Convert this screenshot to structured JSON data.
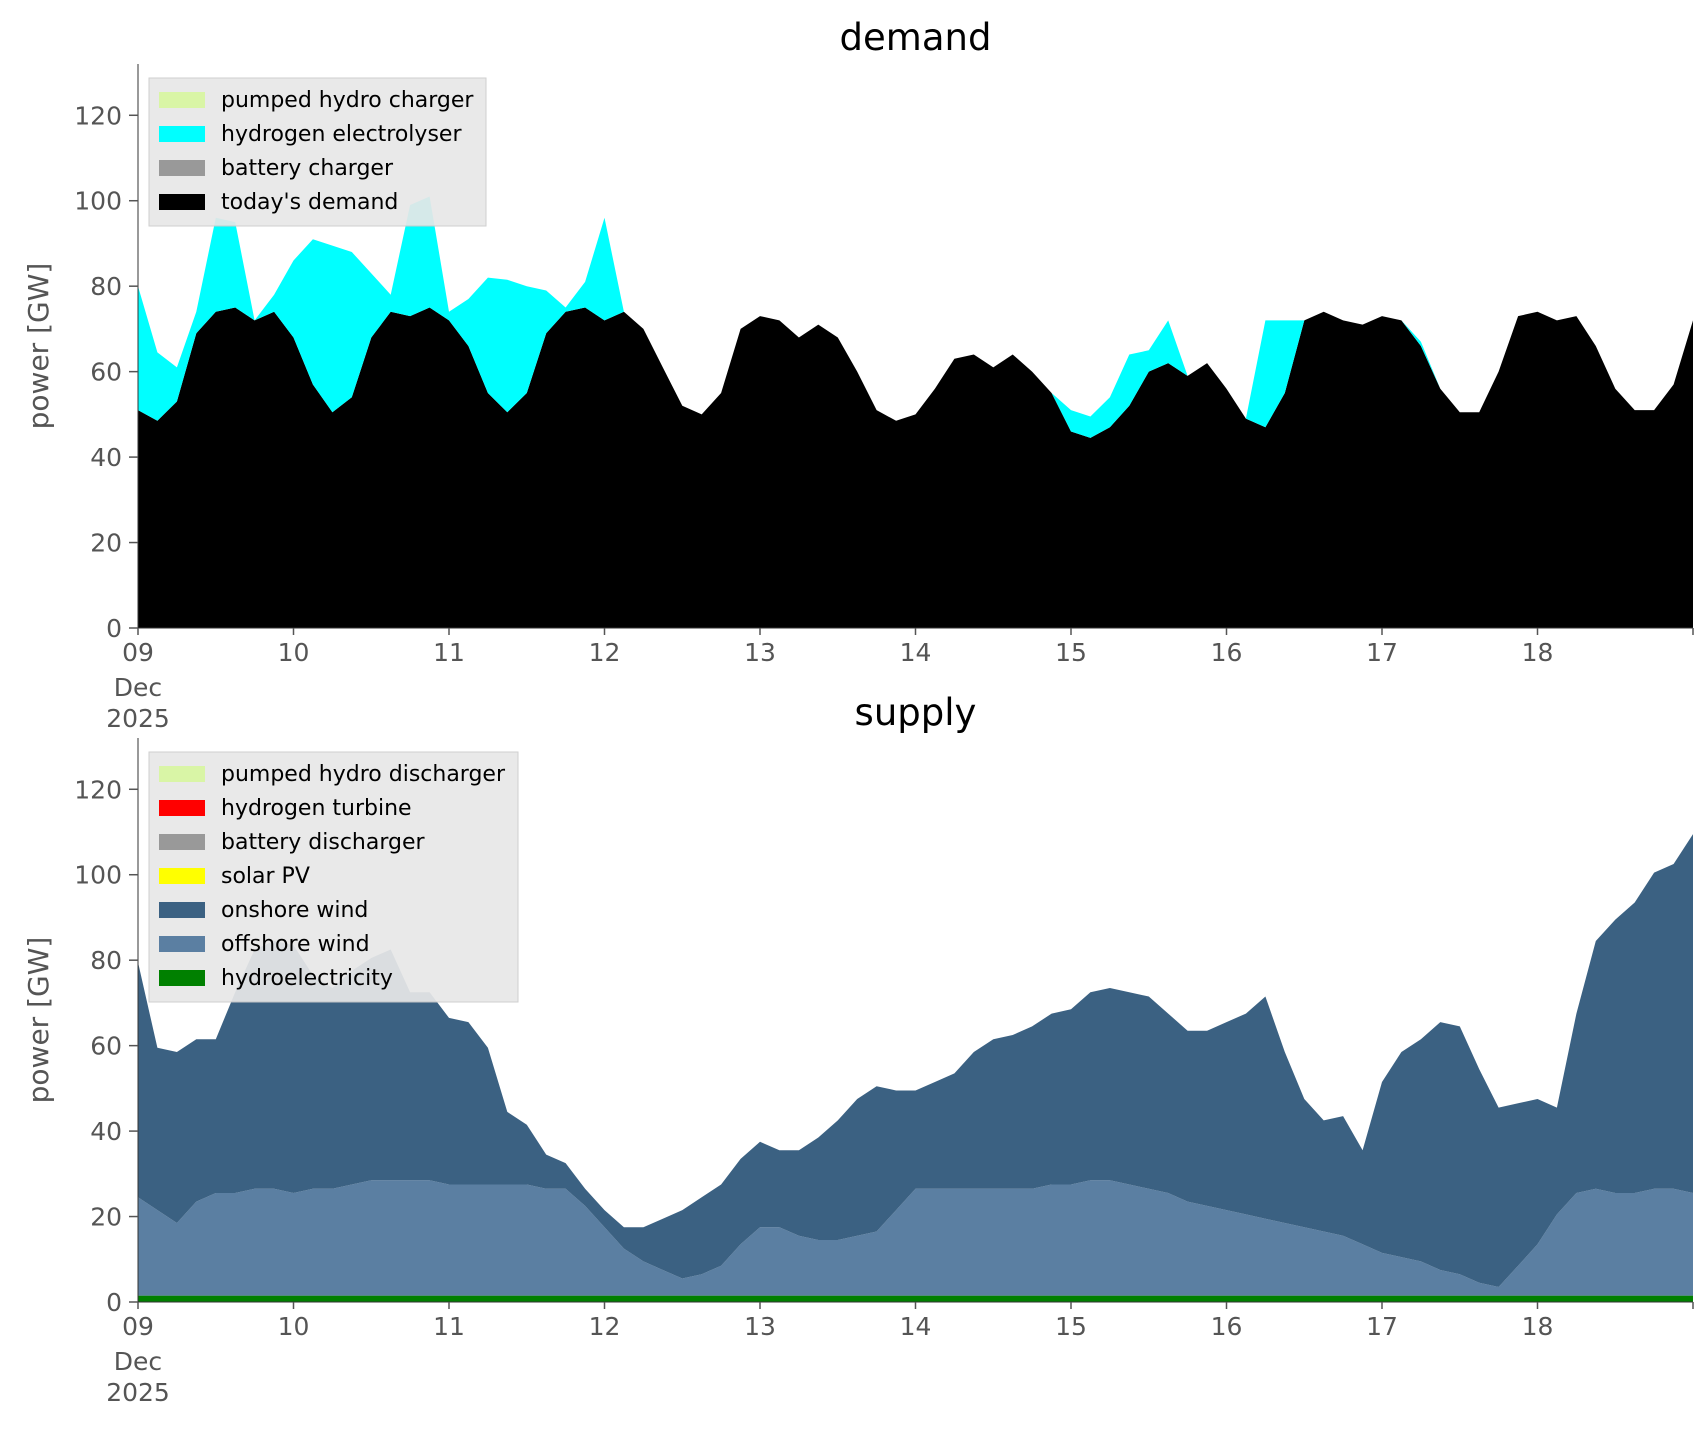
{
  "chart_data": [
    {
      "id": "demand",
      "type": "area",
      "stacked": true,
      "title": "demand",
      "ylabel": "power [GW]",
      "xlabel": "",
      "ylim": [
        0,
        132
      ],
      "yticks": [
        0,
        20,
        40,
        60,
        80,
        100,
        120
      ],
      "xlim": [
        "2025-12-09",
        "2025-12-19"
      ],
      "xticks": [
        "09",
        "10",
        "11",
        "12",
        "13",
        "14",
        "15",
        "16",
        "17",
        "18"
      ],
      "xtick_sublabel": [
        "Dec",
        "2025"
      ],
      "grid": false,
      "legend_position": "top-left",
      "legend_order": [
        "pumped hydro charger",
        "hydrogen electrolyser",
        "battery charger",
        "today's demand"
      ],
      "x_hours": [
        0,
        3,
        6,
        9,
        12,
        15,
        18,
        21,
        24,
        27,
        30,
        33,
        36,
        39,
        42,
        45,
        48,
        51,
        54,
        57,
        60,
        63,
        66,
        69,
        72,
        75,
        78,
        81,
        84,
        87,
        90,
        93,
        96,
        99,
        102,
        105,
        108,
        111,
        114,
        117,
        120,
        123,
        126,
        129,
        132,
        135,
        138,
        141,
        144,
        147,
        150,
        153,
        156,
        159,
        162,
        165,
        168,
        171,
        174,
        177,
        180,
        183,
        186,
        189,
        192,
        195,
        198,
        201,
        204,
        207,
        210,
        213,
        216,
        219,
        222,
        225,
        228,
        231,
        234,
        237,
        240
      ],
      "series": [
        {
          "name": "today's demand",
          "color": "#000000",
          "values": [
            51,
            48.5,
            53,
            69,
            74,
            75,
            72,
            74,
            68,
            57,
            50.5,
            54,
            68,
            74,
            73,
            75,
            72,
            66,
            55,
            50.5,
            55,
            69,
            74,
            75,
            72,
            74,
            70,
            61,
            52,
            50,
            55,
            70,
            73,
            72,
            68,
            71,
            68,
            60,
            51,
            48.5,
            50,
            56,
            63,
            64,
            61,
            64,
            60,
            55,
            46,
            44.5,
            47,
            52,
            60,
            62,
            59,
            62,
            56,
            49,
            47,
            55,
            72,
            74,
            72,
            71,
            73,
            72,
            66,
            56,
            50.5,
            50.5,
            60,
            73,
            74,
            72,
            73,
            66,
            56,
            51,
            51,
            57,
            72
          ]
        },
        {
          "name": "battery charger",
          "color": "#999999",
          "values": [
            0,
            0,
            0,
            0,
            0,
            0,
            0,
            0,
            0,
            0,
            0,
            0,
            0,
            0,
            0,
            0,
            0,
            0,
            0,
            0,
            0,
            0,
            0,
            0,
            0,
            0,
            0,
            0,
            0,
            0,
            0,
            0,
            0,
            0,
            0,
            0,
            0,
            0,
            0,
            0,
            0,
            0,
            0,
            0,
            0,
            0,
            0,
            0,
            0,
            0,
            0,
            0,
            0,
            0,
            0,
            0,
            0,
            0,
            0,
            0,
            0,
            0,
            0,
            0,
            0,
            0,
            0,
            0,
            0,
            0,
            0,
            0,
            0,
            0,
            0,
            0,
            0,
            0,
            0,
            0,
            0
          ]
        },
        {
          "name": "hydrogen electrolyser",
          "color": "#00ffff",
          "values": [
            29,
            16,
            8,
            5,
            22,
            20,
            0,
            4,
            18,
            34,
            39,
            34,
            15,
            4,
            26,
            26,
            2,
            11,
            27,
            31,
            25,
            10,
            1,
            6,
            24,
            0,
            0,
            0,
            0,
            0,
            0,
            0,
            0,
            0,
            0,
            0,
            0,
            0,
            0,
            0,
            0,
            0,
            0,
            0,
            0,
            0,
            0,
            0,
            5,
            5,
            7,
            12,
            5,
            10,
            0,
            0,
            0,
            0,
            25,
            17,
            0,
            0,
            0,
            0,
            0,
            0,
            1,
            0,
            0,
            0,
            0,
            0,
            0,
            0,
            0,
            0,
            0,
            0,
            0,
            0,
            0
          ]
        },
        {
          "name": "pumped hydro charger",
          "color": "#d9f5a6",
          "values": [
            0,
            0,
            0,
            0,
            0,
            0,
            0,
            0,
            0,
            0,
            0,
            0,
            0,
            0,
            0,
            0,
            0,
            0,
            0,
            0,
            0,
            0,
            0,
            0,
            0,
            0,
            0,
            0,
            0,
            0,
            0,
            0,
            0,
            0,
            0,
            0,
            0,
            0,
            0,
            0,
            0,
            0,
            0,
            0,
            0,
            0,
            0,
            0,
            0,
            0,
            0,
            0,
            0,
            0,
            0,
            0,
            0,
            0,
            0,
            0,
            0,
            0,
            0,
            0,
            0,
            0,
            0,
            0,
            0,
            0,
            0,
            0,
            0,
            0,
            0,
            0,
            0,
            0,
            0,
            0,
            0
          ]
        }
      ]
    },
    {
      "id": "supply",
      "type": "area",
      "stacked": true,
      "title": "supply",
      "ylabel": "power [GW]",
      "xlabel": "",
      "ylim": [
        0,
        132
      ],
      "yticks": [
        0,
        20,
        40,
        60,
        80,
        100,
        120
      ],
      "xlim": [
        "2025-12-09",
        "2025-12-19"
      ],
      "xticks": [
        "09",
        "10",
        "11",
        "12",
        "13",
        "14",
        "15",
        "16",
        "17",
        "18"
      ],
      "xtick_sublabel": [
        "Dec",
        "2025"
      ],
      "grid": false,
      "legend_position": "top-left",
      "legend_order": [
        "pumped hydro discharger",
        "hydrogen turbine",
        "battery discharger",
        "solar PV",
        "onshore wind",
        "offshore wind",
        "hydroelectricity"
      ],
      "x_hours": [
        0,
        3,
        6,
        9,
        12,
        15,
        18,
        21,
        24,
        27,
        30,
        33,
        36,
        39,
        42,
        45,
        48,
        51,
        54,
        57,
        60,
        63,
        66,
        69,
        72,
        75,
        78,
        81,
        84,
        87,
        90,
        93,
        96,
        99,
        102,
        105,
        108,
        111,
        114,
        117,
        120,
        123,
        126,
        129,
        132,
        135,
        138,
        141,
        144,
        147,
        150,
        153,
        156,
        159,
        162,
        165,
        168,
        171,
        174,
        177,
        180,
        183,
        186,
        189,
        192,
        195,
        198,
        201,
        204,
        207,
        210,
        213,
        216,
        219,
        222,
        225,
        228,
        231,
        234,
        237,
        240
      ],
      "series": [
        {
          "name": "hydroelectricity",
          "color": "#008000",
          "values": [
            1.5,
            1.5,
            1.5,
            1.5,
            1.5,
            1.5,
            1.5,
            1.5,
            1.5,
            1.5,
            1.5,
            1.5,
            1.5,
            1.5,
            1.5,
            1.5,
            1.5,
            1.5,
            1.5,
            1.5,
            1.5,
            1.5,
            1.5,
            1.5,
            1.5,
            1.5,
            1.5,
            1.5,
            1.5,
            1.5,
            1.5,
            1.5,
            1.5,
            1.5,
            1.5,
            1.5,
            1.5,
            1.5,
            1.5,
            1.5,
            1.5,
            1.5,
            1.5,
            1.5,
            1.5,
            1.5,
            1.5,
            1.5,
            1.5,
            1.5,
            1.5,
            1.5,
            1.5,
            1.5,
            1.5,
            1.5,
            1.5,
            1.5,
            1.5,
            1.5,
            1.5,
            1.5,
            1.5,
            1.5,
            1.5,
            1.5,
            1.5,
            1.5,
            1.5,
            1.5,
            1.5,
            1.5,
            1.5,
            1.5,
            1.5,
            1.5,
            1.5,
            1.5,
            1.5,
            1.5,
            1.5
          ]
        },
        {
          "name": "offshore wind",
          "color": "#5b7fa2",
          "values": [
            23,
            20,
            17,
            22,
            24,
            24,
            25,
            25,
            24,
            25,
            25,
            26,
            27,
            27,
            27,
            27,
            26,
            26,
            26,
            26,
            26,
            25,
            25,
            21,
            16,
            11,
            8,
            6,
            4,
            5,
            7,
            12,
            16,
            16,
            14,
            13,
            13,
            14,
            15,
            20,
            25,
            25,
            25,
            25,
            25,
            25,
            25,
            26,
            26,
            27,
            27,
            26,
            25,
            24,
            22,
            21,
            20,
            19,
            18,
            17,
            16,
            15,
            14,
            12,
            10,
            9,
            8,
            6,
            5,
            3,
            2,
            7,
            12,
            19,
            24,
            25,
            24,
            24,
            25,
            25,
            24
          ]
        },
        {
          "name": "onshore wind",
          "color": "#3b6182",
          "values": [
            55,
            38,
            40,
            38,
            36,
            47,
            56,
            58,
            58,
            50,
            47,
            50,
            52,
            54,
            44,
            44,
            39,
            38,
            32,
            17,
            14,
            8,
            6,
            4,
            4,
            5,
            8,
            12,
            16,
            18,
            19,
            20,
            20,
            18,
            20,
            24,
            28,
            32,
            34,
            28,
            23,
            25,
            27,
            32,
            35,
            36,
            38,
            40,
            41,
            44,
            45,
            45,
            45,
            42,
            40,
            41,
            44,
            47,
            52,
            40,
            30,
            26,
            28,
            22,
            40,
            48,
            52,
            58,
            58,
            50,
            42,
            38,
            34,
            25,
            42,
            58,
            64,
            68,
            74,
            76,
            84
          ]
        },
        {
          "name": "battery discharger",
          "color": "#999999",
          "values": [
            0,
            0,
            0,
            0,
            0,
            0,
            0,
            0,
            0,
            0,
            0,
            0,
            0,
            0,
            0,
            0,
            0,
            0,
            0,
            0,
            0,
            0,
            0,
            0,
            0,
            0,
            0,
            0,
            0,
            0,
            0,
            0,
            0,
            0,
            0,
            0,
            0,
            0,
            0,
            0,
            0,
            0,
            0,
            0,
            0,
            0,
            0,
            0,
            0,
            0,
            0,
            0,
            0,
            0,
            0,
            0,
            0,
            0,
            0,
            0,
            0,
            0,
            0,
            0,
            0,
            0,
            0,
            0,
            0,
            0,
            0,
            0,
            0,
            0,
            0,
            0,
            0,
            0,
            0,
            0,
            0
          ]
        },
        {
          "name": "solar PV",
          "color": "#ffff00",
          "values": [
            0,
            0,
            0,
            0,
            0,
            0,
            0,
            0,
            0,
            0,
            0,
            0,
            0,
            0,
            0,
            0,
            0,
            0,
            0,
            0,
            0,
            0,
            0,
            0,
            0,
            0,
            0,
            0,
            0,
            0,
            0,
            0,
            0,
            0,
            0,
            0,
            0,
            0,
            0,
            0,
            0,
            0,
            0,
            0,
            0,
            0,
            0,
            0,
            0,
            0,
            0,
            0,
            0,
            0,
            0,
            0,
            0,
            0,
            0,
            0,
            0,
            0,
            0,
            0,
            0,
            0,
            0,
            0,
            0,
            0,
            0,
            0,
            0,
            0,
            0,
            0,
            0,
            0,
            0,
            0,
            0
          ]
        },
        {
          "name": "hydrogen turbine",
          "color": "#ff0000",
          "values": [
            0,
            0,
            0,
            0,
            0,
            0,
            0,
            0,
            0,
            0,
            0,
            0,
            0,
            0,
            0,
            0,
            0,
            0,
            0,
            0,
            0,
            0,
            0,
            0,
            0,
            0,
            0,
            0,
            0,
            0,
            0,
            0,
            0,
            0,
            0,
            0,
            0,
            0,
            0,
            0,
            0,
            0,
            0,
            0,
            0,
            0,
            0,
            0,
            0,
            0,
            0,
            0,
            0,
            0,
            0,
            0,
            0,
            0,
            0,
            0,
            0,
            0,
            0,
            0,
            0,
            0,
            0,
            0,
            0,
            0,
            0,
            0,
            0,
            0,
            0,
            0,
            0,
            0,
            0,
            0,
            0
          ]
        },
        {
          "name": "pumped hydro discharger",
          "color": "#d9f5a6",
          "values": [
            0,
            0,
            0,
            0,
            0,
            0,
            0,
            0,
            0,
            0,
            0,
            0,
            0,
            0,
            0,
            0,
            0,
            0,
            0,
            0,
            0,
            0,
            0,
            0,
            0,
            0,
            0,
            0,
            0,
            0,
            0,
            0,
            0,
            0,
            0,
            0,
            0,
            0,
            0,
            0,
            0,
            0,
            0,
            0,
            0,
            0,
            0,
            0,
            0,
            0,
            0,
            0,
            0,
            0,
            0,
            0,
            0,
            0,
            0,
            0,
            0,
            0,
            0,
            0,
            0,
            0,
            0,
            0,
            0,
            0,
            0,
            0,
            0,
            0,
            0,
            0,
            0,
            0,
            0,
            0,
            0
          ]
        }
      ]
    }
  ]
}
